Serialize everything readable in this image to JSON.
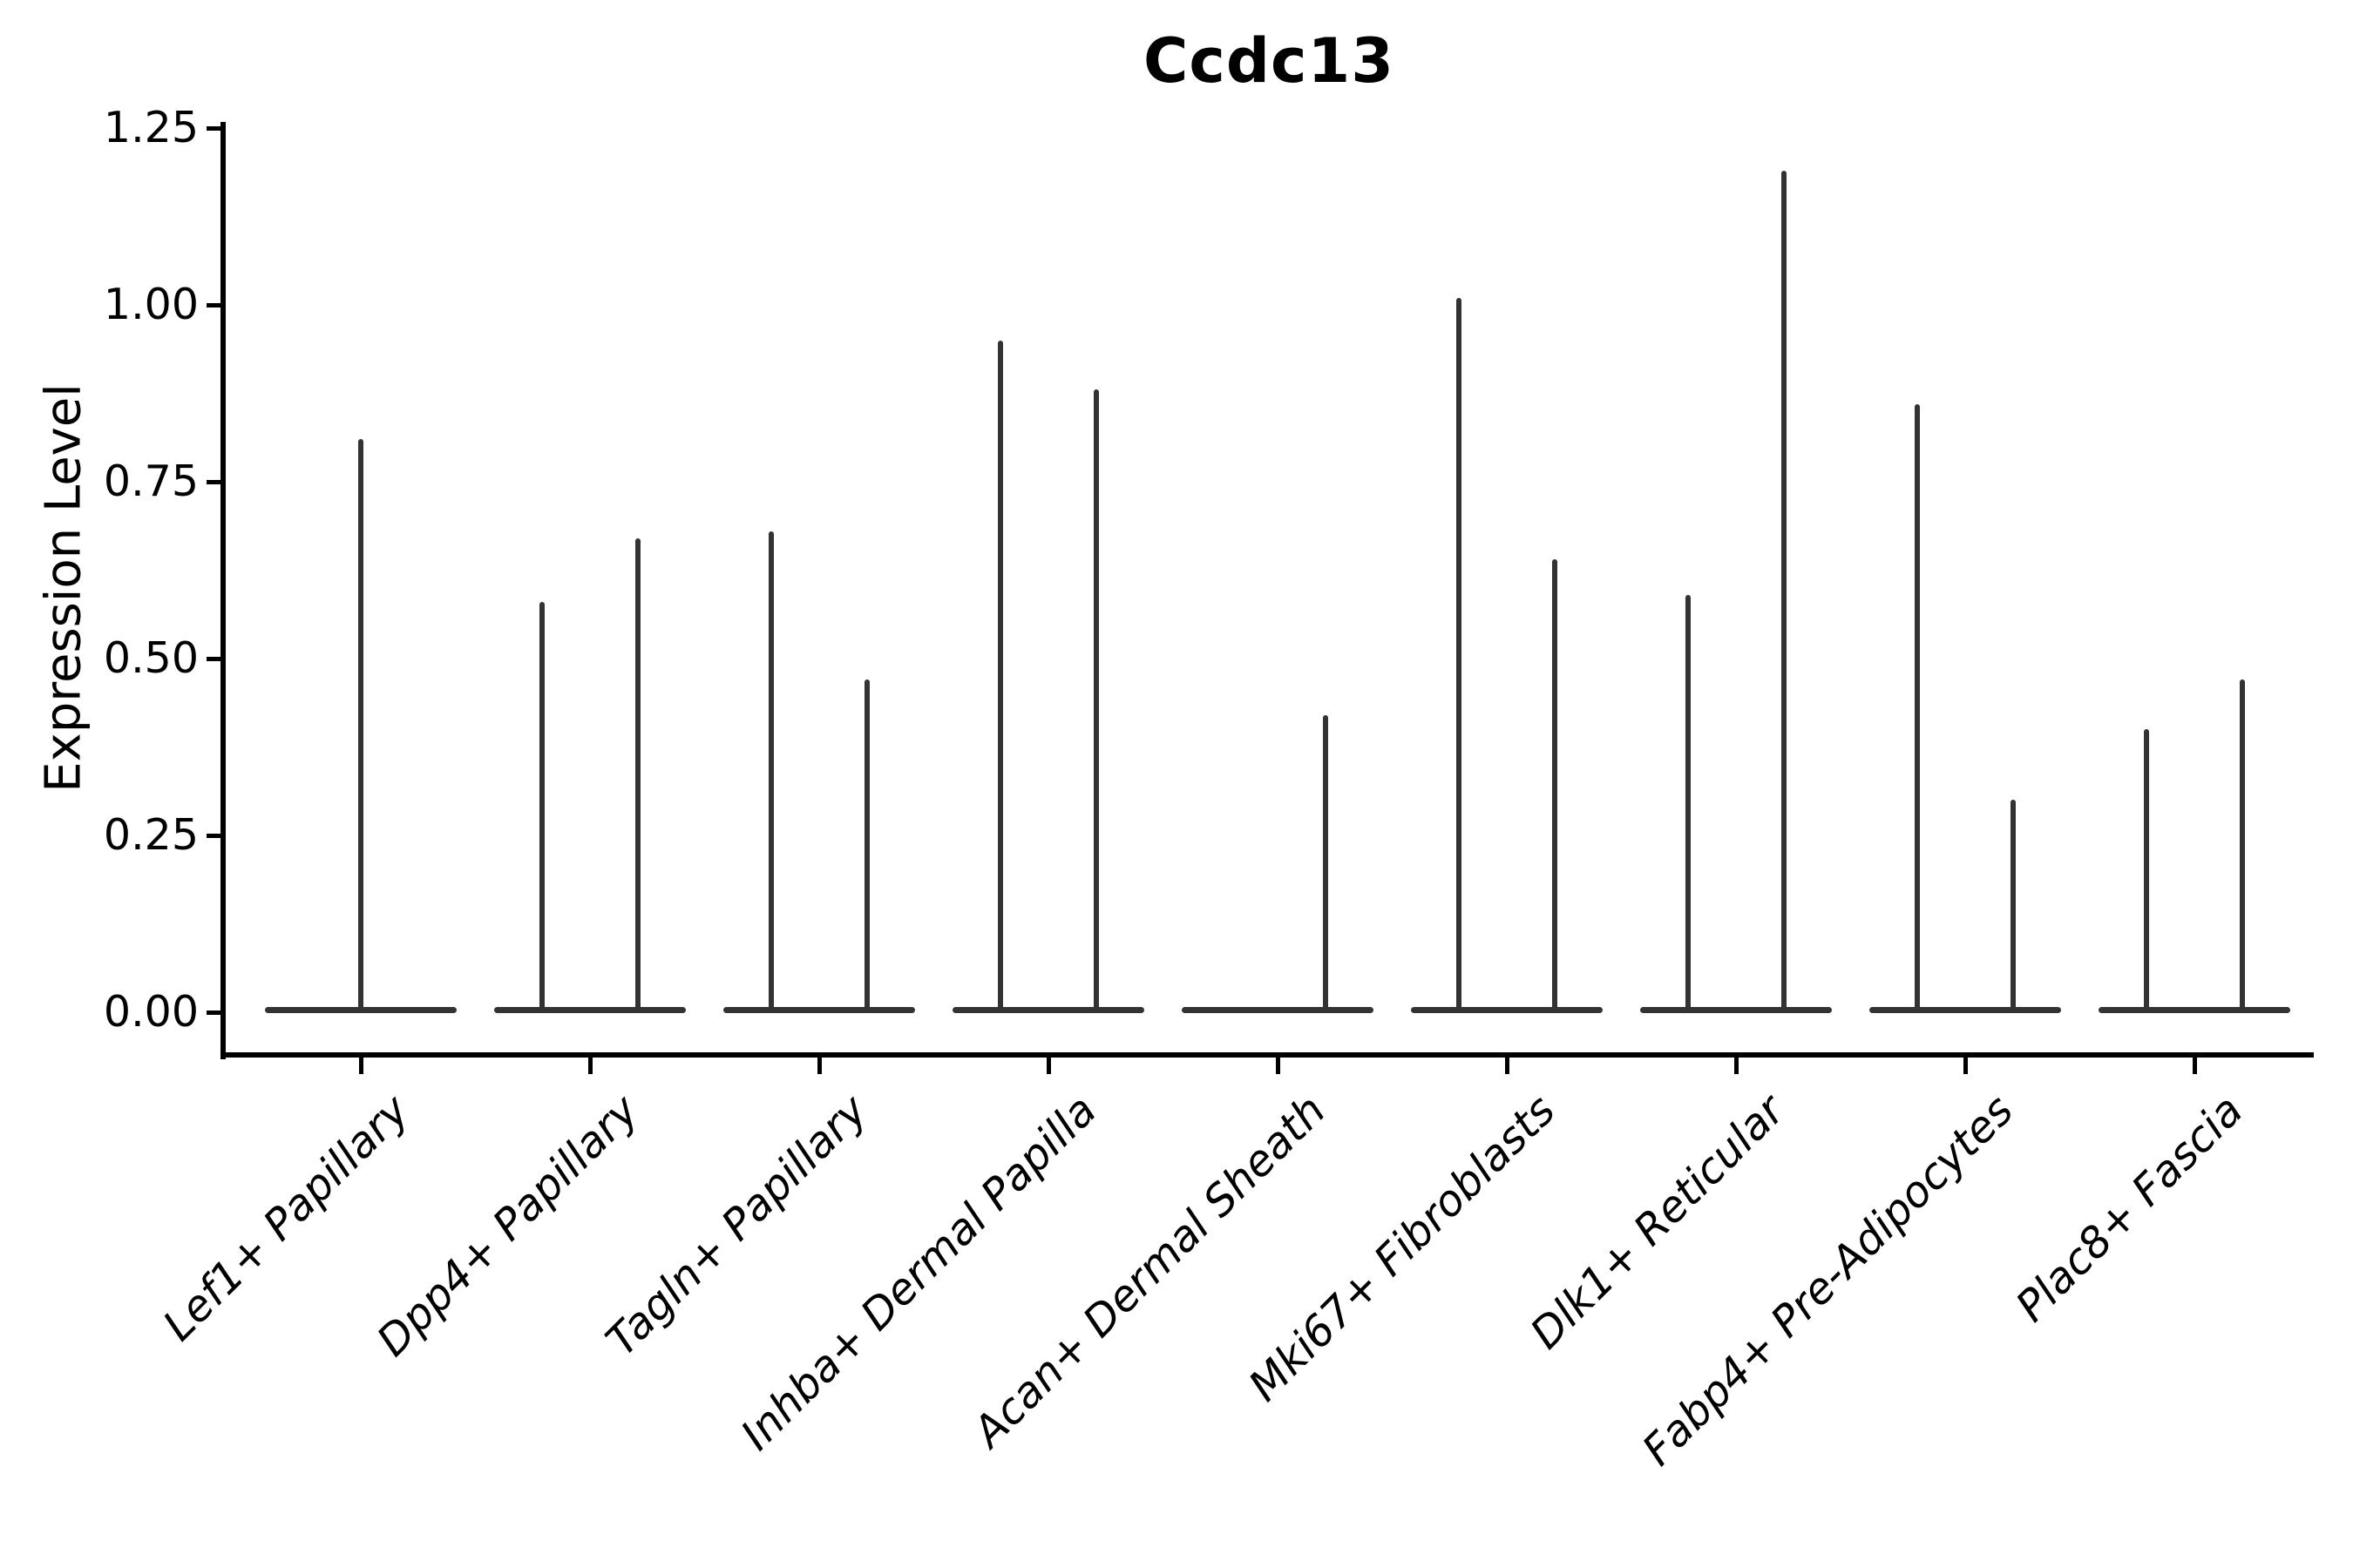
{
  "title": "Ccdc13",
  "axes": {
    "y_label": "Expression Level",
    "y_tick_labels": [
      "0.00",
      "0.25",
      "0.50",
      "0.75",
      "1.00",
      "1.25"
    ]
  },
  "colors": {
    "background": "#ffffff",
    "text": "#000000",
    "spine": "#000000",
    "violin_line": "#333333"
  },
  "chart_data": {
    "type": "violin",
    "title": "Ccdc13",
    "xlabel": "",
    "ylabel": "Expression Level",
    "ylim": [
      0,
      1.26
    ],
    "yticks": [
      0,
      0.25,
      0.5,
      0.75,
      1.0,
      1.25
    ],
    "grid": false,
    "legend": false,
    "description": "Violin plot; each cell-type category shows violins collapsed to a flat baseline at 0 expression with thin spikes reaching the maximum expression value.",
    "categories": [
      "Lef1+ Papillary",
      "Dpp4+ Papillary",
      "Tagln+ Papillary",
      "Inhba+ Dermal Papilla",
      "Acan+ Dermal Sheath",
      "Mki67+ Fibroblasts",
      "Dlk1+ Reticular",
      "Fabp4+ Pre-Adipocytes",
      "Plac8+ Fascia"
    ],
    "violins": [
      {
        "category": "Lef1+ Papillary",
        "baseline": 0,
        "spikes": [
          {
            "position": "center",
            "max": 0.81
          }
        ]
      },
      {
        "category": "Dpp4+ Papillary",
        "baseline": 0,
        "spikes": [
          {
            "position": "left",
            "max": 0.58
          },
          {
            "position": "right",
            "max": 0.67
          }
        ]
      },
      {
        "category": "Tagln+ Papillary",
        "baseline": 0,
        "spikes": [
          {
            "position": "left",
            "max": 0.68
          },
          {
            "position": "right",
            "max": 0.47
          }
        ]
      },
      {
        "category": "Inhba+ Dermal Papilla",
        "baseline": 0,
        "spikes": [
          {
            "position": "left",
            "max": 0.95
          },
          {
            "position": "right",
            "max": 0.88
          }
        ]
      },
      {
        "category": "Acan+ Dermal Sheath",
        "baseline": 0,
        "spikes": [
          {
            "position": "right",
            "max": 0.42
          }
        ]
      },
      {
        "category": "Mki67+ Fibroblasts",
        "baseline": 0,
        "spikes": [
          {
            "position": "left",
            "max": 1.01
          },
          {
            "position": "right",
            "max": 0.64
          }
        ]
      },
      {
        "category": "Dlk1+ Reticular",
        "baseline": 0,
        "spikes": [
          {
            "position": "left",
            "max": 0.59
          },
          {
            "position": "right",
            "max": 1.19
          }
        ]
      },
      {
        "category": "Fabp4+ Pre-Adipocytes",
        "baseline": 0,
        "spikes": [
          {
            "position": "left",
            "max": 0.86
          },
          {
            "position": "right",
            "max": 0.3
          }
        ]
      },
      {
        "category": "Plac8+ Fascia",
        "baseline": 0,
        "spikes": [
          {
            "position": "left",
            "max": 0.4
          },
          {
            "position": "right",
            "max": 0.47
          }
        ]
      }
    ]
  }
}
